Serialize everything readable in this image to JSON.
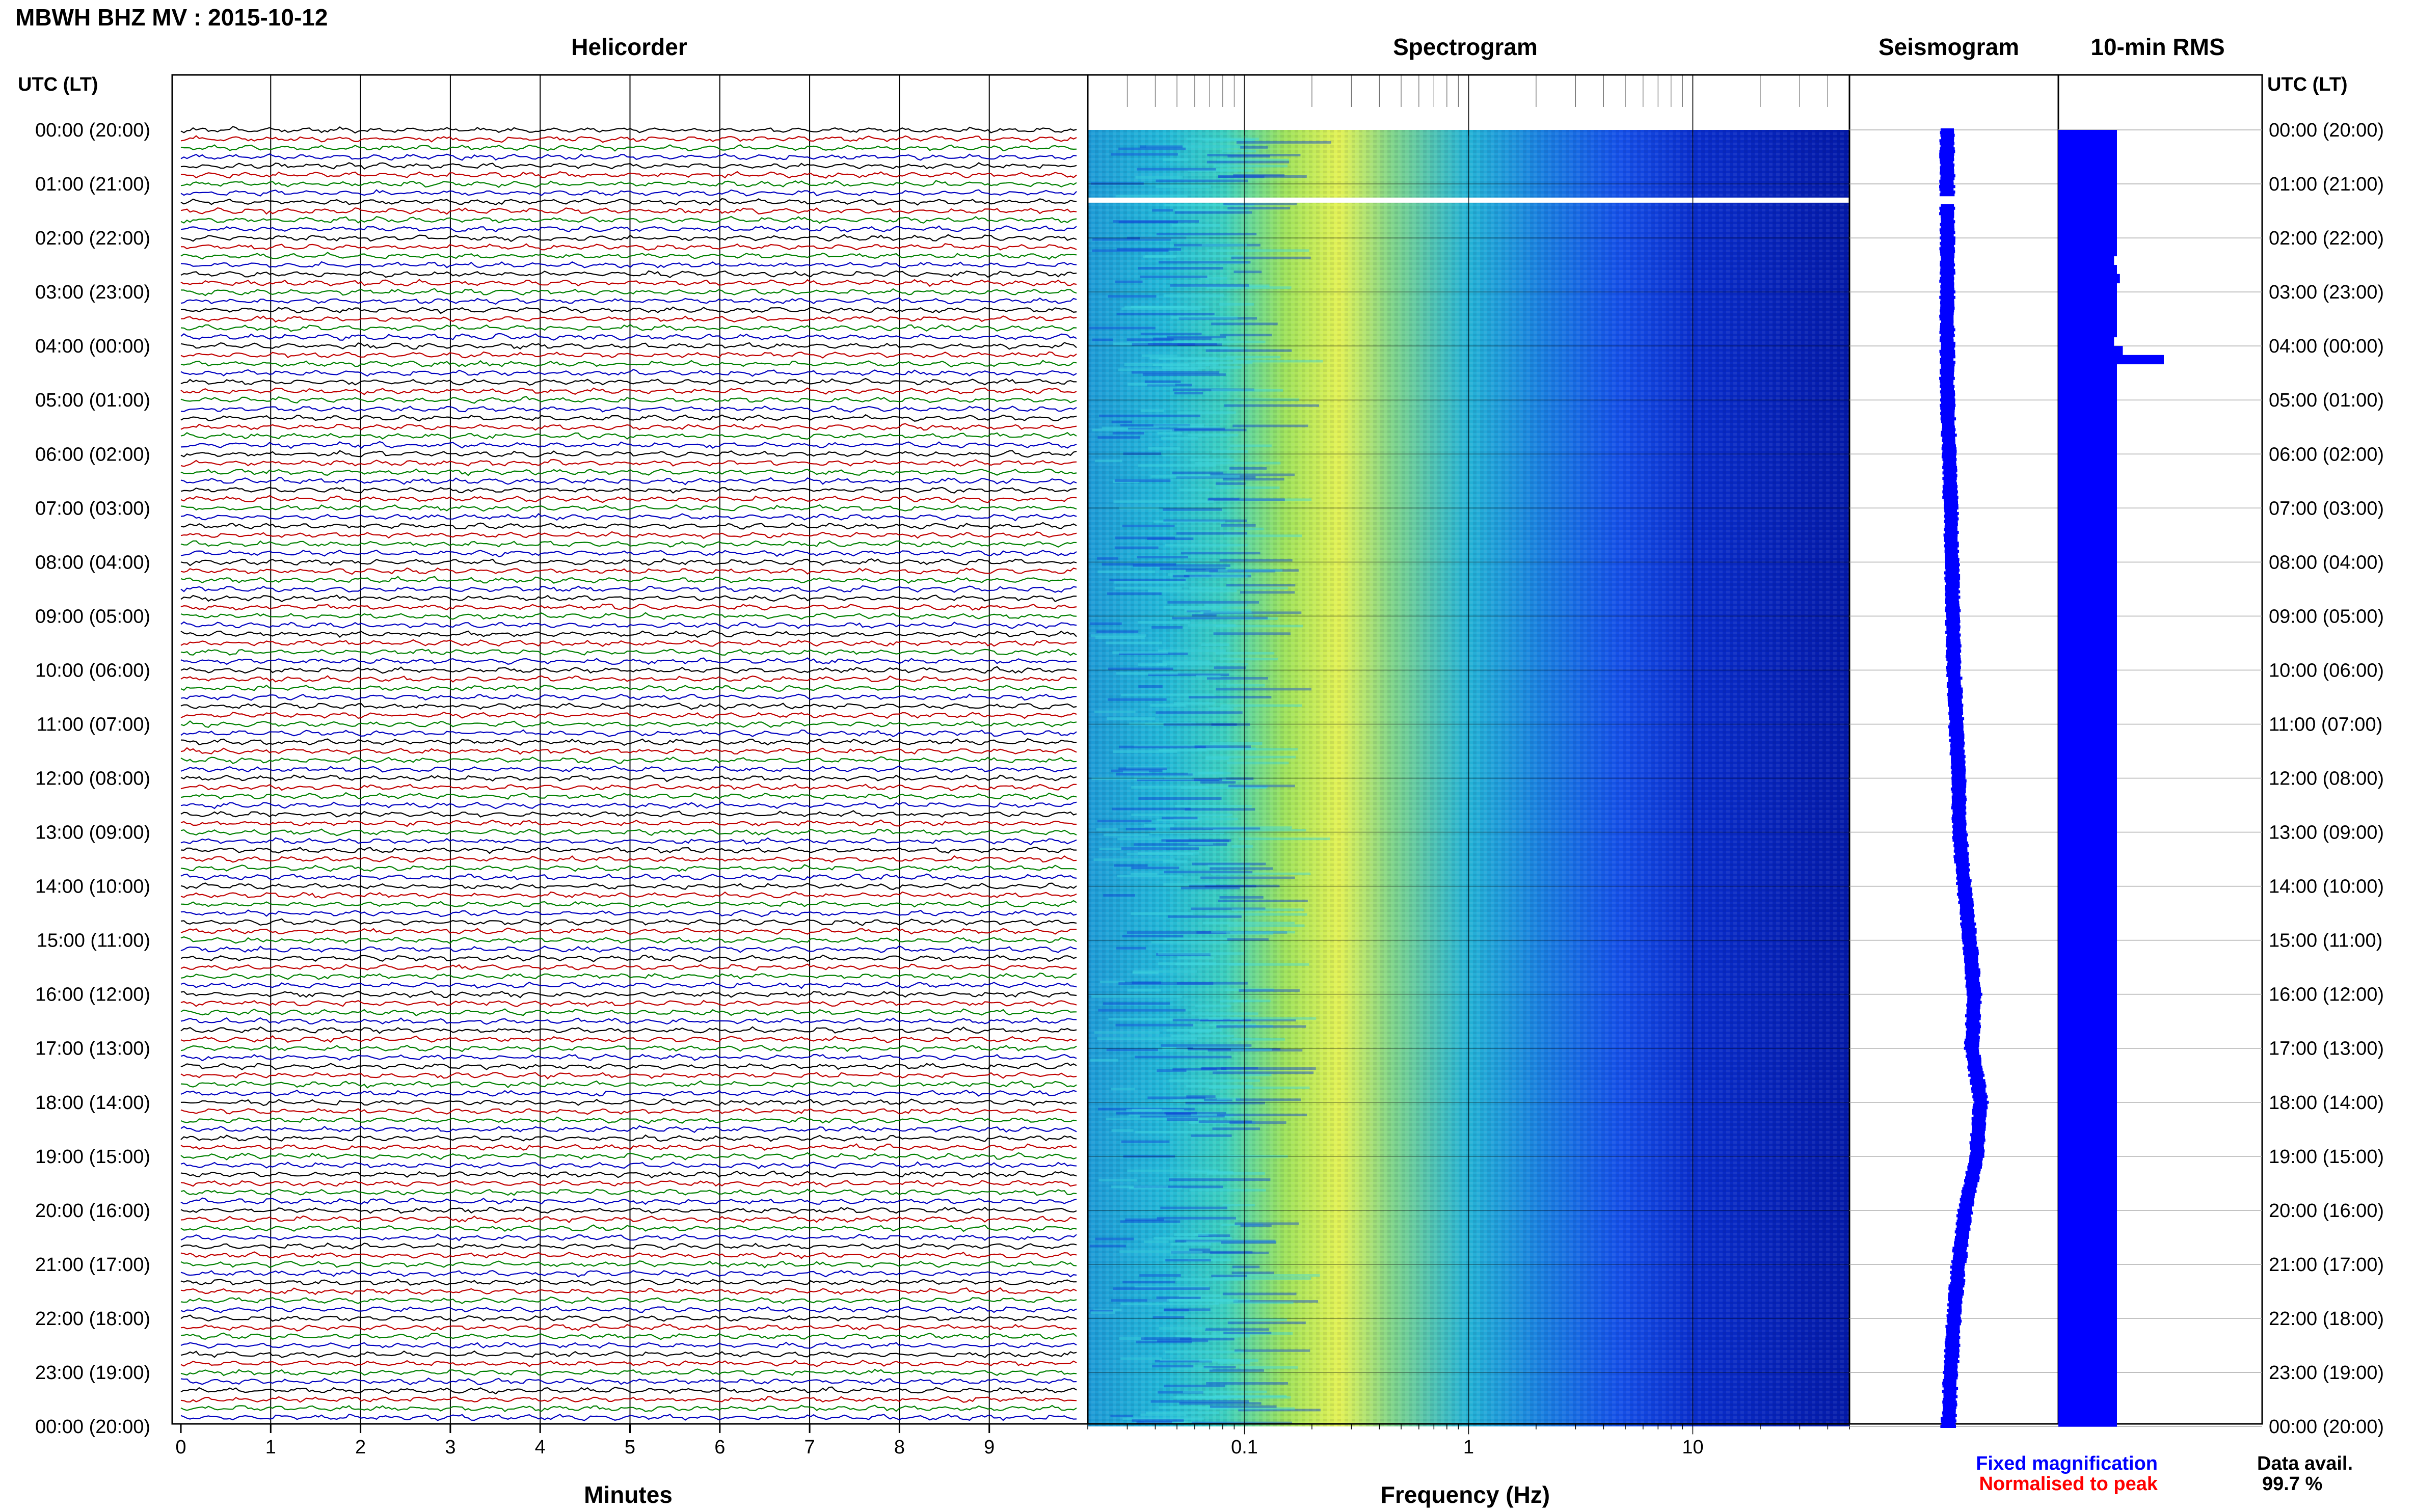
{
  "header": {
    "title": "MBWH BHZ MV : 2015-10-12"
  },
  "panels": {
    "helicorder": "Helicorder",
    "spectrogram": "Spectrogram",
    "seismogram": "Seismogram",
    "rms": "10-min RMS"
  },
  "axis": {
    "left_label": "UTC (LT)",
    "right_label": "UTC (LT)",
    "minutes_label": "Minutes",
    "frequency_label": "Frequency (Hz)"
  },
  "footer": {
    "legend_fixed": "Fixed magnification",
    "legend_normalised": "Normalised to peak",
    "data_avail_label": "Data avail.",
    "data_avail_value": "99.7 %"
  },
  "colors": {
    "trace_cycle": [
      "#000000",
      "#c00000",
      "#008000",
      "#0000c0"
    ],
    "spectrogram_low": "#00008b",
    "spectrogram_high": "#ffff40",
    "seismogram": "#0000ff",
    "rms": "#0000ff",
    "legend_fixed": "#0000ff",
    "legend_normalised": "#ff0000"
  },
  "chart_data": [
    {
      "type": "line",
      "panel": "Helicorder",
      "xlabel": "Minutes",
      "x_ticks": [
        "0",
        "1",
        "2",
        "3",
        "4",
        "5",
        "6",
        "7",
        "8",
        "9"
      ],
      "xlim": [
        0,
        10
      ],
      "row_labels": [
        "00:00 (20:00)",
        "01:00 (21:00)",
        "02:00 (22:00)",
        "03:00 (23:00)",
        "04:00 (00:00)",
        "05:00 (01:00)",
        "06:00 (02:00)",
        "07:00 (03:00)",
        "08:00 (04:00)",
        "09:00 (05:00)",
        "10:00 (06:00)",
        "11:00 (07:00)",
        "12:00 (08:00)",
        "13:00 (09:00)",
        "14:00 (10:00)",
        "15:00 (11:00)",
        "16:00 (12:00)",
        "17:00 (13:00)",
        "18:00 (14:00)",
        "19:00 (15:00)",
        "20:00 (16:00)",
        "21:00 (17:00)",
        "22:00 (18:00)",
        "23:00 (19:00)",
        "00:00 (20:00)"
      ],
      "traces_per_hour": 6,
      "total_hours": 24
    },
    {
      "type": "heatmap",
      "panel": "Spectrogram",
      "xlabel": "Frequency (Hz)",
      "x_scale": "log",
      "x_ticks": [
        "0.1",
        "1",
        "10"
      ],
      "xlim": [
        0.02,
        50
      ],
      "ylim_hours": [
        0,
        24
      ],
      "energy_peak_hz": 0.2,
      "data_gap_hour": 1.3
    },
    {
      "type": "line",
      "panel": "Seismogram",
      "ylim_hours": [
        0,
        24
      ],
      "hours": [
        0,
        1,
        2,
        3,
        4,
        5,
        6,
        7,
        8,
        9,
        10,
        11,
        12,
        13,
        14,
        15,
        16,
        17,
        18,
        19,
        20,
        21,
        22,
        23,
        24
      ],
      "offset": [
        0,
        0,
        0,
        0,
        0,
        0,
        0.2,
        0.3,
        0.4,
        0.5,
        0.6,
        0.8,
        1,
        1.1,
        1.5,
        2,
        2.4,
        2.2,
        3,
        2.6,
        1.6,
        1,
        0.6,
        0.3,
        0.1
      ],
      "gap_hour": 1.3
    },
    {
      "type": "bar",
      "panel": "10-min RMS",
      "orientation": "horizontal",
      "ylim_hours": [
        0,
        24
      ],
      "values": [
        1,
        1,
        1,
        1,
        1,
        1,
        1,
        1,
        1,
        1,
        1,
        1,
        1,
        1,
        0.95,
        1,
        1.05,
        1,
        1,
        1,
        1,
        1,
        1,
        0.95,
        1.1,
        1.8,
        1,
        1,
        1,
        1,
        1,
        1,
        1,
        1,
        1,
        1,
        1,
        1,
        1,
        1,
        1,
        1,
        1,
        1,
        1,
        1,
        1,
        1,
        1,
        1,
        1,
        1,
        1,
        1,
        1,
        1,
        1,
        1,
        1,
        1,
        1,
        1,
        1,
        1,
        1,
        1,
        1,
        1,
        1,
        1,
        1,
        1,
        1,
        1,
        1,
        1,
        1,
        1,
        1,
        1,
        1,
        1,
        1,
        1,
        1,
        1,
        1,
        1,
        1,
        1,
        1,
        1,
        1,
        1,
        1,
        1,
        1,
        1,
        1,
        1,
        1,
        1,
        1,
        1,
        1,
        1,
        1,
        1,
        1,
        1,
        1,
        1,
        1,
        1,
        1,
        1,
        1,
        1,
        1,
        1,
        1,
        1,
        1,
        1,
        1,
        1,
        1,
        1,
        1,
        1,
        1,
        1,
        1,
        1,
        1,
        1,
        1,
        1,
        1,
        1,
        1,
        1,
        1,
        1
      ]
    }
  ]
}
